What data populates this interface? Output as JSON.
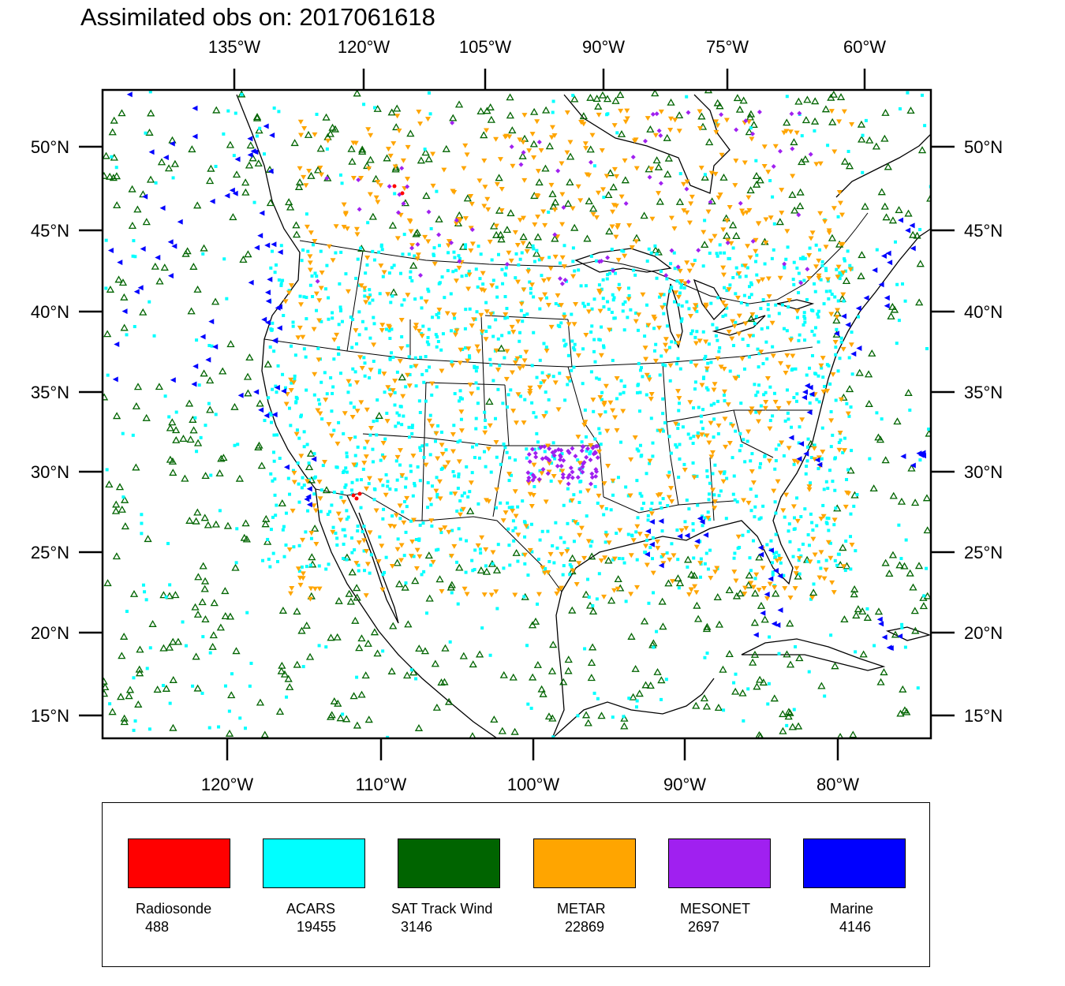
{
  "title": "Assimilated obs on: 2017061618",
  "map": {
    "top_lon_ticks": [
      "135°W",
      "120°W",
      "105°W",
      "90°W",
      "75°W",
      "60°W"
    ],
    "bottom_lon_ticks": [
      "120°W",
      "110°W",
      "100°W",
      "90°W",
      "80°W"
    ],
    "left_lat_ticks": [
      "50°N",
      "45°N",
      "40°N",
      "35°N",
      "30°N",
      "25°N",
      "20°N",
      "15°N"
    ],
    "right_lat_ticks": [
      "50°N",
      "45°N",
      "40°N",
      "35°N",
      "30°N",
      "25°N",
      "20°N",
      "15°N"
    ],
    "lat_range": [
      14,
      54
    ],
    "lon_range": [
      -128,
      -74
    ]
  },
  "legend": [
    {
      "name": "Radiosonde",
      "count": "488",
      "color": "#ff0000",
      "icon": "dot"
    },
    {
      "name": "ACARS",
      "count": "19455",
      "color": "#00ffff",
      "icon": "square-dot"
    },
    {
      "name": "SAT Track Wind",
      "count": "3146",
      "color": "#006400",
      "icon": "triangle-up"
    },
    {
      "name": "METAR",
      "count": "22869",
      "color": "#ffa500",
      "icon": "triangle-down"
    },
    {
      "name": "MESONET",
      "count": "2697",
      "color": "#a020f0",
      "icon": "diamond"
    },
    {
      "name": "Marine",
      "count": "4146",
      "color": "#0000ff",
      "icon": "triangle-left"
    }
  ]
}
